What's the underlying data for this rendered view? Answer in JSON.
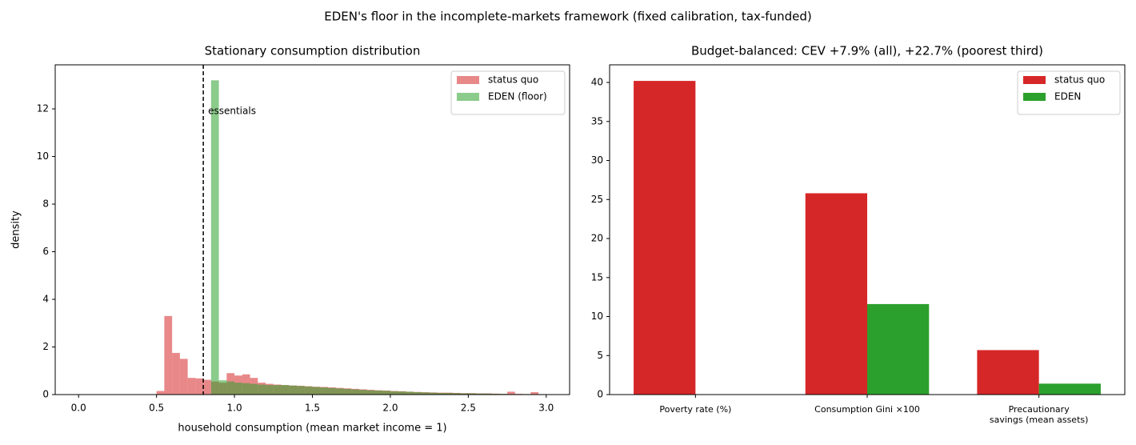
{
  "title": "EDEN's floor in the incomplete-markets framework (fixed calibration, tax-funded)",
  "chart_data": [
    {
      "type": "histogram",
      "title": "Stationary consumption distribution",
      "xlabel": "household consumption (mean market income = 1)",
      "ylabel": "density",
      "bins": [
        0,
        0.05,
        0.1,
        0.15,
        0.2,
        0.25,
        0.3,
        0.35,
        0.4,
        0.45,
        0.5,
        0.55,
        0.6,
        0.65,
        0.7,
        0.75,
        0.8,
        0.85,
        0.9,
        0.95,
        1.0,
        1.05,
        1.1,
        1.15,
        1.2,
        1.25,
        1.3,
        1.35,
        1.4,
        1.45,
        1.5,
        1.55,
        1.6,
        1.65,
        1.7,
        1.75,
        1.8,
        1.85,
        1.9,
        1.95,
        2.0,
        2.05,
        2.1,
        2.15,
        2.2,
        2.25,
        2.3,
        2.35,
        2.4,
        2.45,
        2.5,
        2.55,
        2.6,
        2.65,
        2.7,
        2.75,
        2.8,
        2.85,
        2.9,
        2.95,
        3.0
      ],
      "series": [
        {
          "name": "status quo",
          "color": "#d62728",
          "alpha": 0.55,
          "values": [
            0,
            0,
            0,
            0,
            0,
            0,
            0,
            0,
            0,
            0,
            0.15,
            3.3,
            1.75,
            1.5,
            0.7,
            0.68,
            0.62,
            0.55,
            0.5,
            0.9,
            0.8,
            0.85,
            0.7,
            0.5,
            0.45,
            0.42,
            0.4,
            0.38,
            0.37,
            0.35,
            0.33,
            0.32,
            0.3,
            0.28,
            0.26,
            0.24,
            0.22,
            0.2,
            0.18,
            0.17,
            0.15,
            0.14,
            0.12,
            0.11,
            0.1,
            0.09,
            0.08,
            0.08,
            0.07,
            0.06,
            0.06,
            0.05,
            0.05,
            0.04,
            0.03,
            0.12,
            0.03,
            0.02,
            0.1,
            0.02
          ]
        },
        {
          "name": "EDEN (floor)",
          "color": "#2ca02c",
          "alpha": 0.55,
          "values": [
            0,
            0,
            0,
            0,
            0,
            0,
            0,
            0,
            0,
            0,
            0,
            0,
            0,
            0,
            0,
            0,
            0,
            13.2,
            0.6,
            0.55,
            0.5,
            0.48,
            0.45,
            0.42,
            0.4,
            0.4,
            0.4,
            0.38,
            0.36,
            0.34,
            0.32,
            0.3,
            0.28,
            0.26,
            0.24,
            0.22,
            0.2,
            0.18,
            0.17,
            0.16,
            0.14,
            0.13,
            0.12,
            0.1,
            0.09,
            0.08,
            0.07,
            0.07,
            0.06,
            0.05,
            0.05,
            0.04,
            0.04,
            0.03,
            0.03,
            0.02,
            0.02,
            0.02,
            0.01,
            0.01
          ]
        }
      ],
      "vline": {
        "x": 0.8,
        "label": "essentials",
        "color": "#000000"
      },
      "xlim": [
        -0.15,
        3.15
      ],
      "ylim": [
        0,
        13.85
      ],
      "xticks": [
        {
          "value": 0,
          "label": "0.0"
        },
        0.5,
        {
          "value": 1,
          "label": "1.0"
        },
        1.5,
        {
          "value": 2,
          "label": "2.0"
        },
        2.5,
        {
          "value": 3,
          "label": "3.0"
        }
      ],
      "yticks": [
        0,
        2,
        4,
        6,
        8,
        10,
        12
      ],
      "legend": "upper right"
    },
    {
      "type": "bar",
      "title": "Budget-balanced: CEV +7.9% (all), +22.7% (poorest third)",
      "categories": [
        "Poverty rate (%)",
        "Consumption Gini ×100",
        "Precautionary\nsavings (mean assets)"
      ],
      "series": [
        {
          "name": "status quo",
          "color": "#d62728",
          "values": [
            40.2,
            25.8,
            5.7
          ]
        },
        {
          "name": "EDEN",
          "color": "#2ca02c",
          "values": [
            0,
            11.6,
            1.4
          ]
        }
      ],
      "ylim": [
        0,
        42.26
      ],
      "yticks": [
        0,
        5,
        10,
        15,
        20,
        25,
        30,
        35,
        40
      ],
      "legend": "upper right"
    }
  ]
}
